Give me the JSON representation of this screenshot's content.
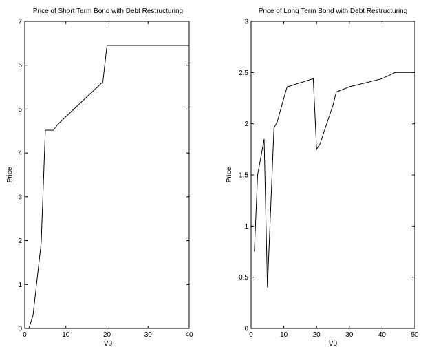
{
  "chart_data": [
    {
      "type": "line",
      "title": "Price of Short Term Bond with Debt Restructuring",
      "xlabel": "V0",
      "ylabel": "Price",
      "xlim": [
        0,
        40
      ],
      "ylim": [
        0,
        7
      ],
      "xticks": [
        0,
        10,
        20,
        30,
        40
      ],
      "yticks": [
        0,
        1,
        2,
        3,
        4,
        5,
        6,
        7
      ],
      "grid": false,
      "series": [
        {
          "x": [
            1,
            2,
            4,
            5,
            7,
            8,
            19,
            20,
            40
          ],
          "y": [
            0,
            0.3,
            1.95,
            4.52,
            4.52,
            4.65,
            5.62,
            6.45,
            6.45
          ]
        }
      ]
    },
    {
      "type": "line",
      "title": "Price of Long Term Bond with Debt Restructuring",
      "xlabel": "V0",
      "ylabel": "Price",
      "xlim": [
        0,
        50
      ],
      "ylim": [
        0,
        3
      ],
      "xticks": [
        0,
        10,
        20,
        30,
        40,
        50
      ],
      "yticks": [
        0,
        0.5,
        1,
        1.5,
        2,
        2.5,
        3
      ],
      "grid": false,
      "series": [
        {
          "x": [
            1,
            2,
            4,
            5,
            7,
            8,
            10,
            11,
            19,
            20,
            21,
            25,
            26,
            30,
            40,
            44,
            50
          ],
          "y": [
            0.75,
            1.5,
            1.85,
            0.4,
            1.96,
            2.02,
            2.25,
            2.36,
            2.44,
            1.75,
            1.8,
            2.18,
            2.31,
            2.36,
            2.44,
            2.5,
            2.5
          ]
        }
      ]
    }
  ]
}
